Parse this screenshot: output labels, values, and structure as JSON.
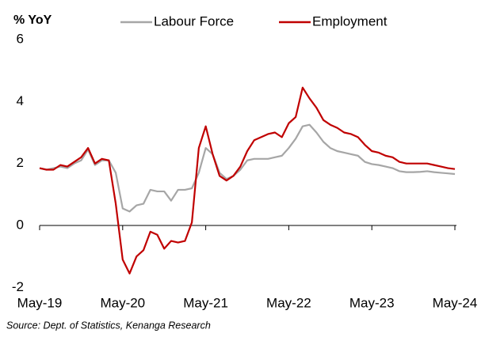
{
  "chart_data": {
    "type": "line",
    "y_label": "% YoY",
    "source": "Source:  Dept. of Statistics, Kenanga Research",
    "categories": [
      "May-19",
      null,
      null,
      null,
      null,
      null,
      null,
      null,
      null,
      null,
      null,
      null,
      "May-20",
      null,
      null,
      null,
      null,
      null,
      null,
      null,
      null,
      null,
      null,
      null,
      "May-21",
      null,
      null,
      null,
      null,
      null,
      null,
      null,
      null,
      null,
      null,
      null,
      "May-22",
      null,
      null,
      null,
      null,
      null,
      null,
      null,
      null,
      null,
      null,
      null,
      "May-23",
      null,
      null,
      null,
      null,
      null,
      null,
      null,
      null,
      null,
      null,
      null,
      "May-24"
    ],
    "series": [
      {
        "name": "Labour Force",
        "color": "#a6a6a6",
        "values": [
          1.85,
          1.8,
          1.85,
          1.9,
          1.85,
          2.0,
          2.1,
          2.45,
          1.95,
          2.1,
          2.1,
          1.7,
          0.55,
          0.45,
          0.65,
          0.7,
          1.15,
          1.1,
          1.1,
          0.8,
          1.15,
          1.15,
          1.2,
          1.7,
          2.5,
          2.3,
          1.7,
          1.5,
          1.6,
          1.8,
          2.1,
          2.15,
          2.15,
          2.15,
          2.2,
          2.25,
          2.5,
          2.8,
          3.2,
          3.25,
          3.0,
          2.7,
          2.5,
          2.4,
          2.35,
          2.3,
          2.25,
          2.05,
          1.98,
          1.95,
          1.9,
          1.85,
          1.75,
          1.72,
          1.72,
          1.73,
          1.75,
          1.72,
          1.7,
          1.68,
          1.66
        ]
      },
      {
        "name": "Employment",
        "color": "#c00000",
        "values": [
          1.85,
          1.8,
          1.8,
          1.95,
          1.9,
          2.05,
          2.2,
          2.5,
          2.0,
          2.15,
          2.1,
          0.7,
          -1.1,
          -1.55,
          -1.0,
          -0.8,
          -0.2,
          -0.3,
          -0.75,
          -0.5,
          -0.55,
          -0.5,
          0.1,
          2.5,
          3.2,
          2.3,
          1.6,
          1.45,
          1.6,
          1.9,
          2.4,
          2.75,
          2.85,
          2.95,
          3.0,
          2.85,
          3.3,
          3.5,
          4.45,
          4.1,
          3.8,
          3.4,
          3.25,
          3.15,
          3.0,
          2.95,
          2.85,
          2.6,
          2.4,
          2.35,
          2.25,
          2.2,
          2.05,
          2.0,
          2.0,
          2.0,
          2.0,
          1.95,
          1.9,
          1.85,
          1.82
        ]
      }
    ],
    "ylim": [
      -2.2,
      6
    ],
    "yticks": [
      -2,
      0,
      2,
      4,
      6
    ],
    "grid": false
  }
}
